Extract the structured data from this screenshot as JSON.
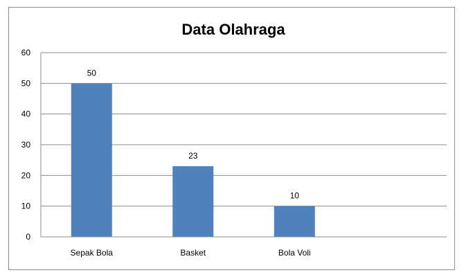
{
  "chart_data": {
    "type": "bar",
    "title": "Data Olahraga",
    "categories": [
      "Sepak Bola",
      "Basket",
      "Bola Voli"
    ],
    "values": [
      50,
      23,
      10
    ],
    "data_labels": [
      "50",
      "23",
      "10"
    ],
    "xlabel": "",
    "ylabel": "",
    "ylim": [
      0,
      60
    ],
    "yticks": [
      0,
      10,
      20,
      30,
      40,
      50,
      60
    ],
    "ytick_labels": [
      "0",
      "10",
      "20",
      "30",
      "40",
      "50",
      "60"
    ],
    "grid": true,
    "legend": "none",
    "bar_color": "#4f81bd",
    "category_slots": 4
  }
}
